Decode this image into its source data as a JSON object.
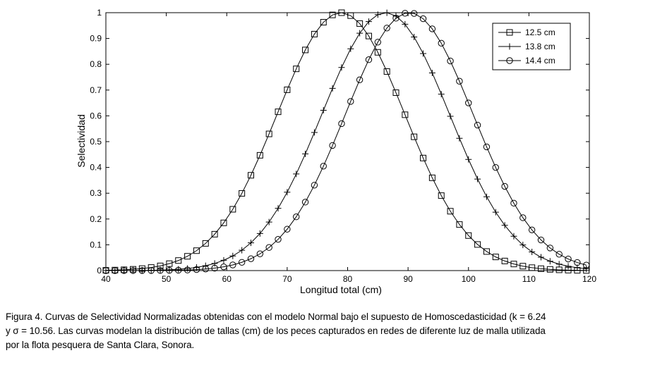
{
  "chart_data": {
    "type": "line",
    "title": "",
    "xlabel": "Longitud total (cm)",
    "ylabel": "Selectividad",
    "xlim": [
      40,
      120
    ],
    "ylim": [
      0,
      1
    ],
    "xticks": [
      "40",
      "50",
      "60",
      "70",
      "80",
      "90",
      "100",
      "110",
      "120"
    ],
    "yticks": [
      "0",
      "0.1",
      "0.2",
      "0.3",
      "0.4",
      "0.5",
      "0.6",
      "0.7",
      "0.8",
      "0.9",
      "1"
    ],
    "x_start": 40,
    "x_end": 120,
    "x_step": 1.5,
    "sigma": 10.56,
    "grid": false,
    "legend_position": "top-right",
    "line_color": "#000000",
    "series": [
      {
        "name": "12.5 cm",
        "mean": 78.9,
        "marker": "square"
      },
      {
        "name": "13.8 cm",
        "mean": 86.3,
        "marker": "plus"
      },
      {
        "name": "14.4 cm",
        "mean": 90.2,
        "marker": "circle"
      }
    ]
  },
  "caption": {
    "line1": "Figura 4. Curvas de Selectividad Normalizadas obtenidas con el modelo Normal bajo el supuesto de Homoscedasticidad (k = 6.24",
    "line2": "y σ = 10.56. Las curvas modelan la distribución de tallas (cm) de los peces capturados en redes de diferente luz de malla utilizada",
    "line3": "por la flota pesquera de Santa Clara, Sonora."
  }
}
